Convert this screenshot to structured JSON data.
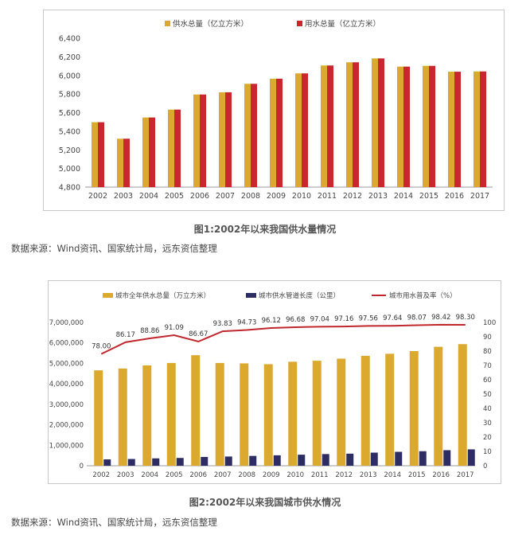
{
  "figure1": {
    "caption": "图1:2002年以来我国供水量情况",
    "source": "数据来源：Wind资讯、国家统计局，远东资信整理"
  },
  "figure2": {
    "caption": "图2:2002年以来我国城市供水情况",
    "source": "数据来源：Wind资讯、国家统计局，远东资信整理"
  },
  "colors": {
    "gold": "#DBA92E",
    "red": "#C9262E",
    "navy": "#2E2D63",
    "line": "#C0272D"
  },
  "chart_data": [
    {
      "type": "bar",
      "title": "",
      "categories": [
        "2002",
        "2003",
        "2004",
        "2005",
        "2006",
        "2007",
        "2008",
        "2009",
        "2010",
        "2011",
        "2012",
        "2013",
        "2014",
        "2015",
        "2016",
        "2017"
      ],
      "series": [
        {
          "name": "供水总量（亿立方米）",
          "values": [
            5497,
            5320,
            5548,
            5633,
            5795,
            5819,
            5910,
            5965,
            6022,
            6107,
            6141,
            6183,
            6095,
            6103,
            6040,
            6043
          ]
        },
        {
          "name": "用水总量（亿立方米）",
          "values": [
            5497,
            5320,
            5548,
            5633,
            5795,
            5819,
            5910,
            5965,
            6022,
            6107,
            6141,
            6183,
            6095,
            6103,
            6040,
            6043
          ]
        }
      ],
      "ylim": [
        4800,
        6400
      ],
      "yticks": [
        "4,800",
        "5,000",
        "5,200",
        "5,400",
        "5,600",
        "5,800",
        "6,000",
        "6,200",
        "6,400"
      ],
      "legend": "top-center",
      "grid": false
    },
    {
      "type": "bar",
      "title": "",
      "categories": [
        "2002",
        "2003",
        "2004",
        "2005",
        "2006",
        "2007",
        "2008",
        "2009",
        "2010",
        "2011",
        "2012",
        "2013",
        "2014",
        "2015",
        "2016",
        "2017"
      ],
      "series": [
        {
          "name": "城市全年供水总量（万立方米）",
          "axis": "left",
          "values": [
            4660000,
            4750000,
            4900000,
            5020000,
            5400000,
            5020000,
            5000000,
            4960000,
            5080000,
            5130000,
            5230000,
            5370000,
            5470000,
            5600000,
            5810000,
            5940000
          ]
        },
        {
          "name": "城市供水管道长度（公里）",
          "axis": "left",
          "values": [
            310000,
            330000,
            360000,
            380000,
            430000,
            450000,
            480000,
            510000,
            540000,
            570000,
            590000,
            640000,
            680000,
            710000,
            760000,
            800000
          ]
        },
        {
          "name": "城市用水普及率（%）",
          "type": "line",
          "axis": "right",
          "values": [
            78.0,
            86.17,
            88.86,
            91.09,
            86.67,
            93.83,
            94.73,
            96.12,
            96.68,
            97.04,
            97.16,
            97.56,
            97.64,
            98.07,
            98.42,
            98.3
          ],
          "labels": [
            "78.00",
            "86.17",
            "88.86",
            "91.09",
            "86.67",
            "93.83",
            "94.73",
            "96.12",
            "96.68",
            "97.04",
            "97.16",
            "97.56",
            "97.64",
            "98.07",
            "98.42",
            "98.30"
          ]
        }
      ],
      "ylim": [
        0,
        7000000
      ],
      "yticks": [
        "0",
        "1,000,000",
        "2,000,000",
        "3,000,000",
        "4,000,000",
        "5,000,000",
        "6,000,000",
        "7,000,000"
      ],
      "y2lim": [
        0,
        100
      ],
      "y2ticks": [
        "0",
        "10",
        "20",
        "30",
        "40",
        "50",
        "60",
        "70",
        "80",
        "90",
        "100"
      ],
      "legend": "top",
      "grid": false
    }
  ]
}
